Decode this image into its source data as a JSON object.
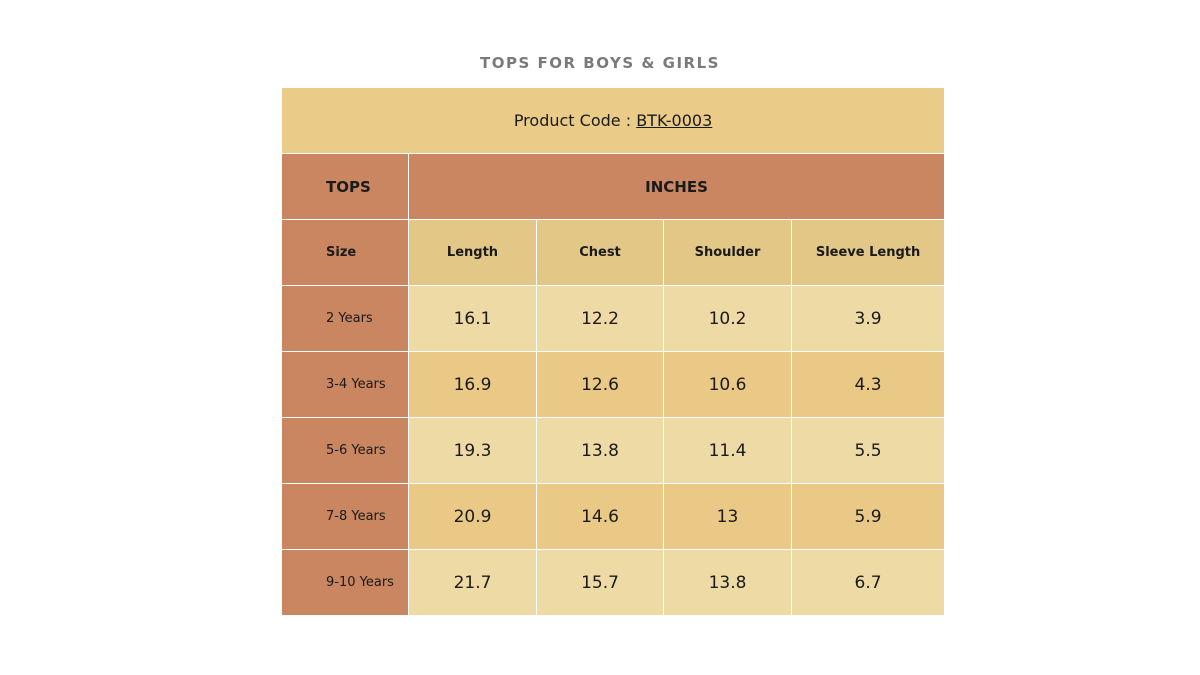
{
  "header": {
    "title": "TOPS FOR BOYS & GIRLS"
  },
  "table": {
    "product_label": "Product Code :",
    "product_code": "BTK-0003",
    "group_headers": [
      "TOPS",
      "INCHES"
    ],
    "columns": [
      "Size",
      "Length",
      "Chest",
      "Shoulder",
      "Sleeve Length"
    ],
    "rows": [
      [
        "2 Years",
        16.1,
        12.2,
        10.2,
        3.9
      ],
      [
        "3-4 Years",
        16.9,
        12.6,
        10.6,
        4.3
      ],
      [
        "5-6 Years",
        19.3,
        13.8,
        11.4,
        5.5
      ],
      [
        "7-8 Years",
        20.9,
        14.6,
        13,
        5.9
      ],
      [
        "9-10 Years",
        21.7,
        15.7,
        13.8,
        6.7
      ]
    ]
  }
}
